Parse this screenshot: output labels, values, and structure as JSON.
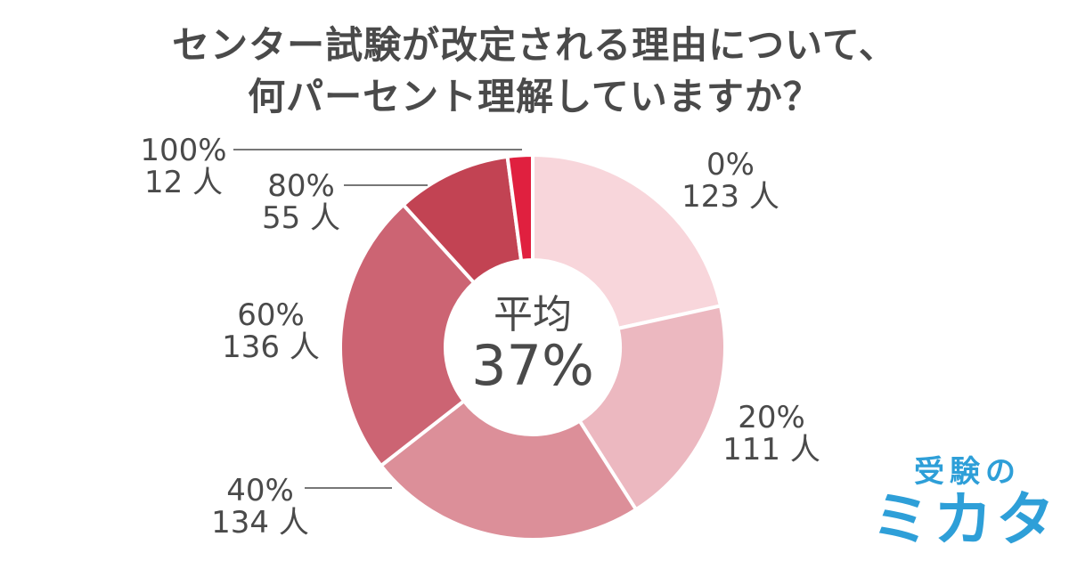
{
  "title": {
    "line1": "センター試験が改定される理由について、",
    "line2": "何パーセント理解していますか？"
  },
  "center": {
    "label": "平均",
    "value": "37%"
  },
  "logo": {
    "top": "受験の",
    "bottom": "ミカタ"
  },
  "chart_data": {
    "type": "pie",
    "donut": true,
    "categories": [
      "0%",
      "20%",
      "40%",
      "60%",
      "80%",
      "100%"
    ],
    "values": [
      123,
      111,
      134,
      136,
      55,
      12
    ],
    "unit": "人",
    "colors": [
      "#f8d6db",
      "#ecb8c0",
      "#dc8f99",
      "#cc6473",
      "#c24353",
      "#e0203f"
    ],
    "start_angle_deg": 0,
    "direction": "clockwise",
    "average_label": "平均",
    "average_value": "37%",
    "legend": "none"
  }
}
